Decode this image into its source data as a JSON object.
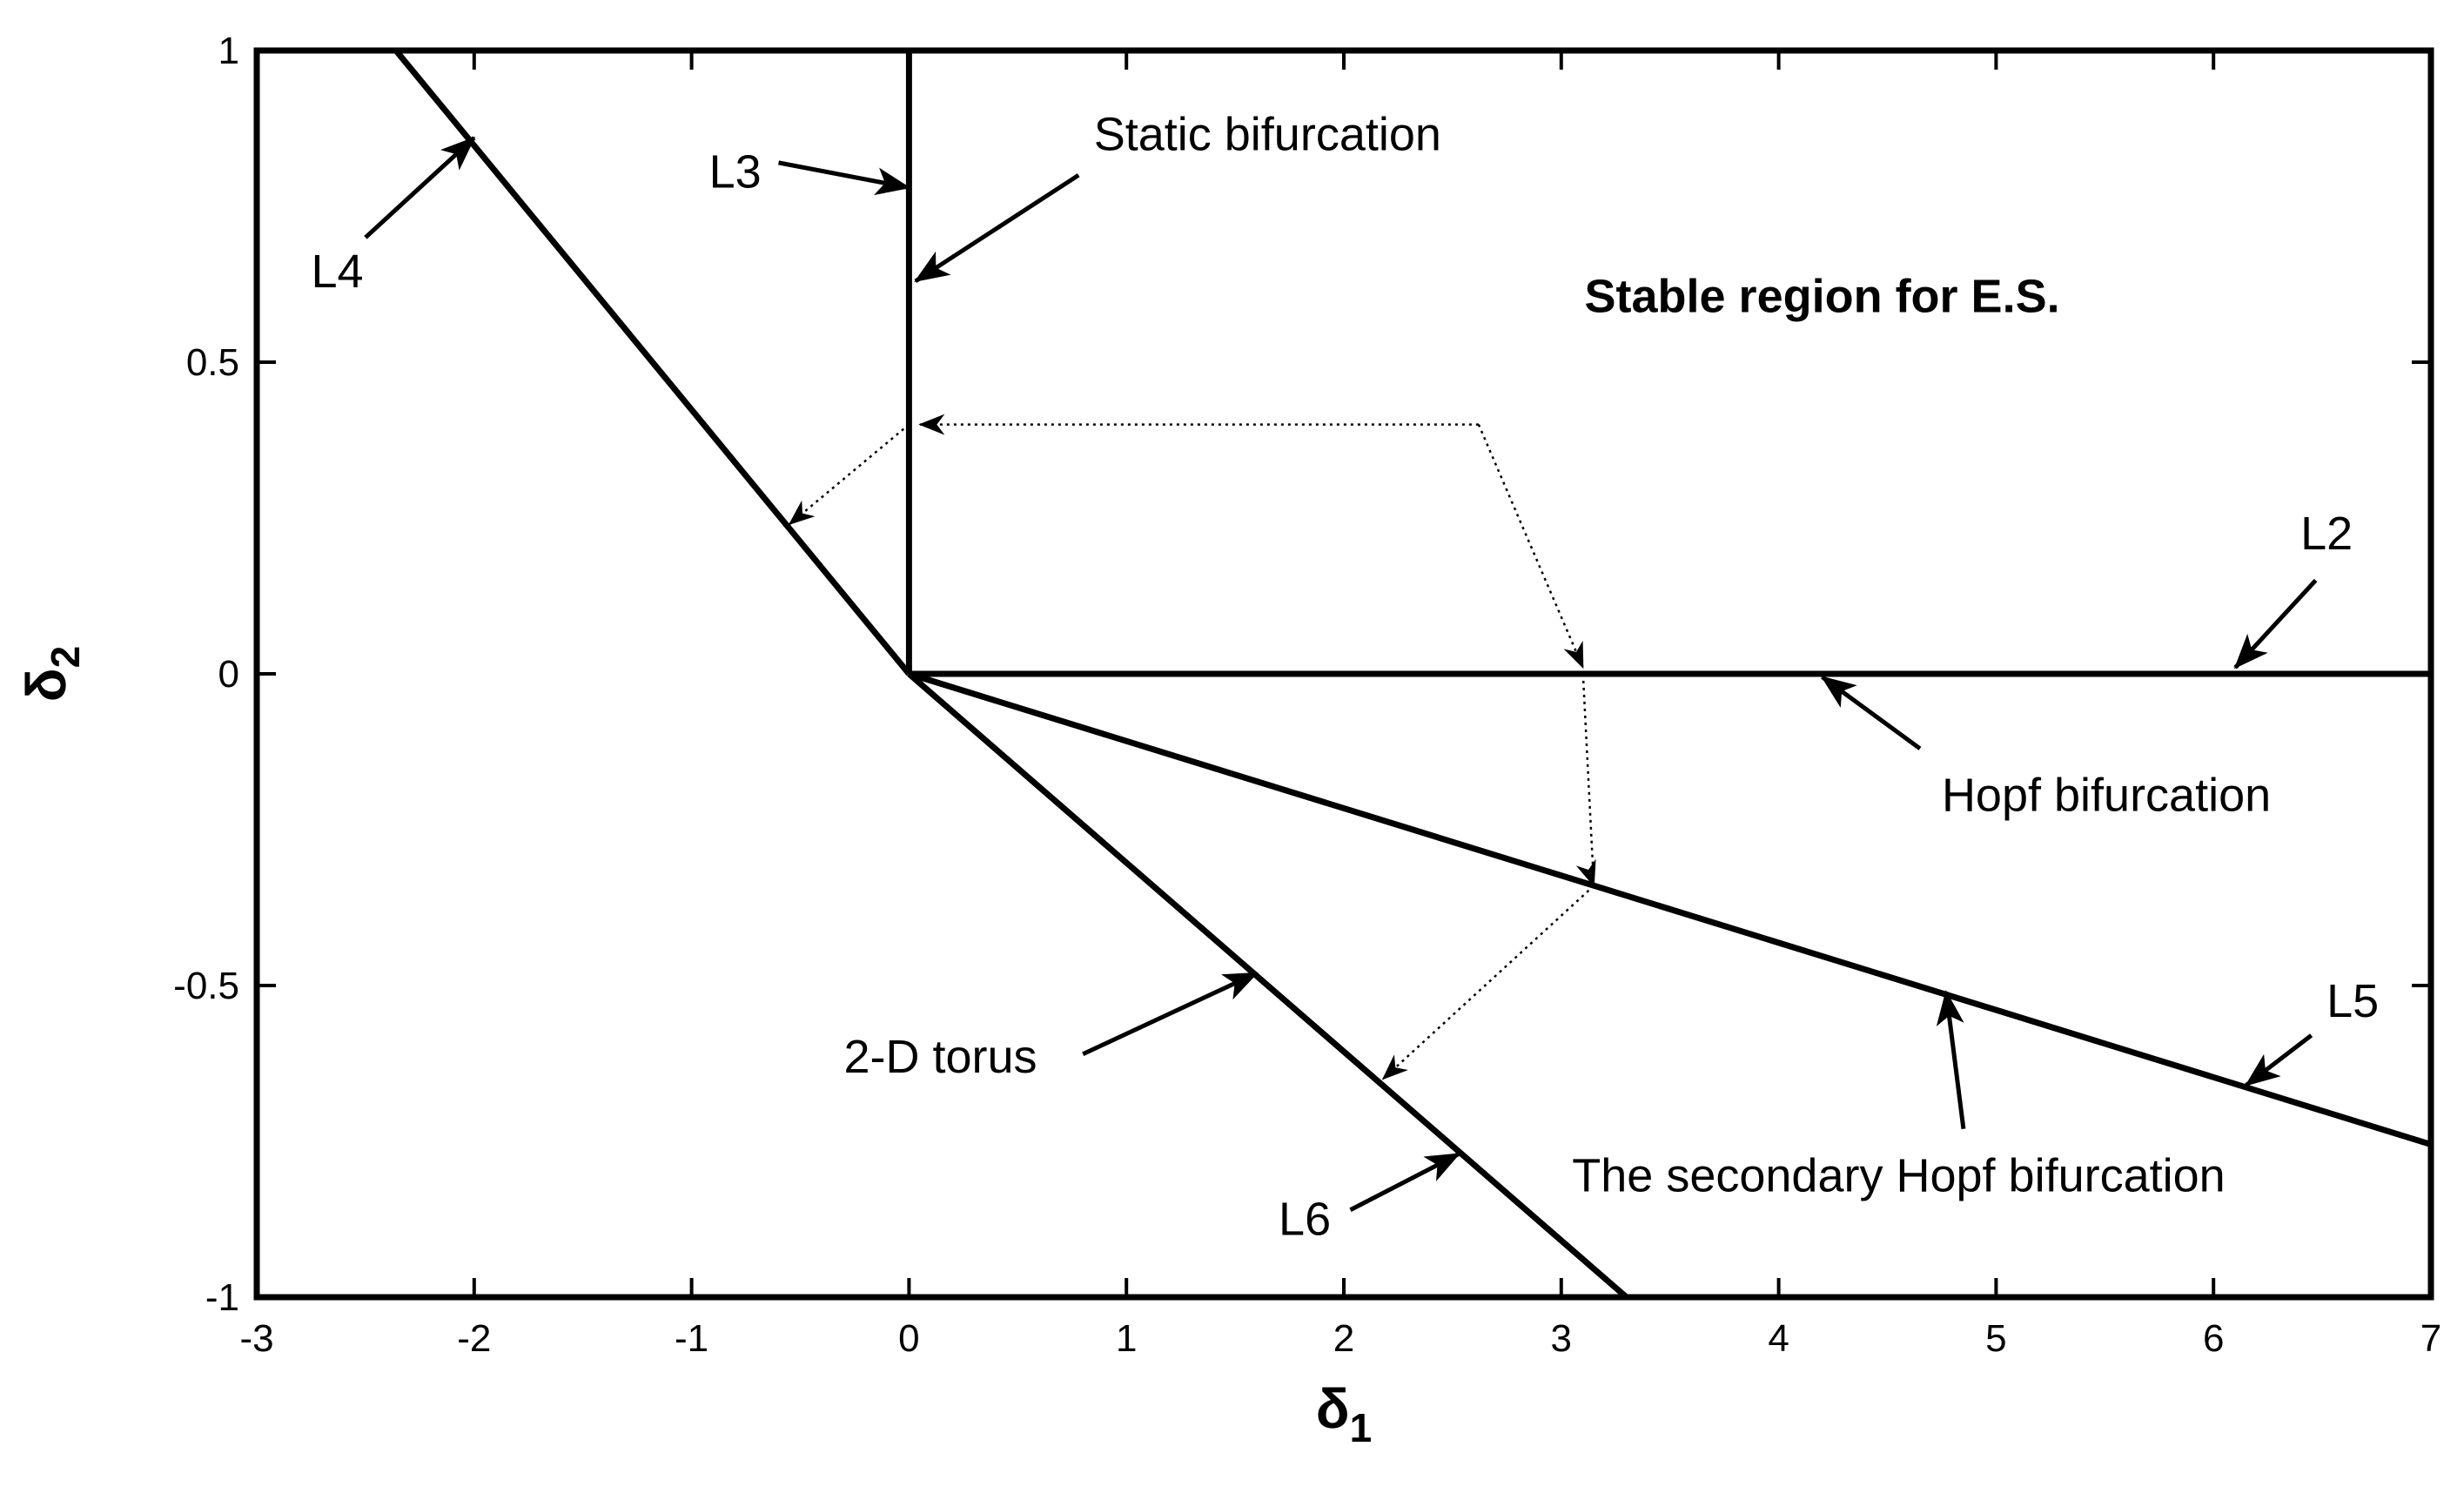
{
  "chart_data": {
    "type": "line",
    "title": "",
    "xlabel": {
      "base": "δ",
      "sub": "1"
    },
    "ylabel": {
      "base": "δ",
      "sub": "2"
    },
    "xlim": [
      -3,
      7
    ],
    "ylim": [
      -1,
      1
    ],
    "xticks": [
      -3,
      -2,
      -1,
      0,
      1,
      2,
      3,
      4,
      5,
      6,
      7
    ],
    "yticks": [
      -1,
      -0.5,
      0,
      0.5,
      1
    ],
    "xtick_labels": [
      "-3",
      "-2",
      "-1",
      "0",
      "1",
      "2",
      "3",
      "4",
      "5",
      "6",
      "7"
    ],
    "ytick_labels": [
      "-1",
      "-0.5",
      "0",
      "0.5",
      "1"
    ],
    "grid": false,
    "series": [
      {
        "name": "L2",
        "points": [
          [
            0,
            0
          ],
          [
            7,
            0
          ]
        ]
      },
      {
        "name": "L3",
        "points": [
          [
            0,
            0
          ],
          [
            0,
            1
          ]
        ]
      },
      {
        "name": "L4",
        "points": [
          [
            0,
            0
          ],
          [
            -2.36,
            1
          ]
        ]
      },
      {
        "name": "L5",
        "points": [
          [
            0,
            0
          ],
          [
            7,
            -0.755
          ]
        ]
      },
      {
        "name": "L6",
        "points": [
          [
            0,
            0
          ],
          [
            3.3,
            -1
          ]
        ]
      }
    ],
    "region_label": {
      "text": "Stable region for E.S.",
      "at": [
        4.2,
        0.58
      ]
    },
    "annotations": [
      {
        "text": "Static bifurcation",
        "at": [
          0.85,
          0.84
        ],
        "anchor": "start",
        "arrow": [
          [
            0.78,
            0.8
          ],
          [
            0.03,
            0.63
          ]
        ]
      },
      {
        "text": "L3",
        "at": [
          -0.92,
          0.78
        ],
        "anchor": "start",
        "arrow": [
          [
            -0.6,
            0.82
          ],
          [
            0,
            0.78
          ]
        ]
      },
      {
        "text": "L4",
        "at": [
          -2.75,
          0.62
        ],
        "anchor": "start",
        "arrow": [
          [
            -2.5,
            0.7
          ],
          [
            -2,
            0.86
          ]
        ]
      },
      {
        "text": "L2",
        "at": [
          6.4,
          0.2
        ],
        "anchor": "start",
        "arrow": [
          [
            6.47,
            0.15
          ],
          [
            6.1,
            0.01
          ]
        ]
      },
      {
        "text": "Hopf bifurcation",
        "at": [
          4.75,
          -0.22
        ],
        "anchor": "start",
        "arrow": [
          [
            4.65,
            -0.12
          ],
          [
            4.2,
            -0.005
          ]
        ]
      },
      {
        "text": "2-D torus",
        "at": [
          -0.3,
          -0.64
        ],
        "anchor": "start",
        "arrow": [
          [
            0.8,
            -0.61
          ],
          [
            1.6,
            -0.48
          ]
        ]
      },
      {
        "text": "L5",
        "at": [
          6.52,
          -0.55
        ],
        "anchor": "start",
        "arrow": [
          [
            6.45,
            -0.58
          ],
          [
            6.15,
            -0.66
          ]
        ]
      },
      {
        "text": "The secondary Hopf bifurcation",
        "at": [
          3.05,
          -0.83
        ],
        "anchor": "start",
        "arrow": [
          [
            4.85,
            -0.73
          ],
          [
            4.77,
            -0.51
          ]
        ]
      },
      {
        "text": "L6",
        "at": [
          1.7,
          -0.9
        ],
        "anchor": "start",
        "arrow": [
          [
            2.03,
            -0.86
          ],
          [
            2.53,
            -0.77
          ]
        ]
      }
    ],
    "dotted_path": [
      [
        2.62,
        0.4
      ],
      [
        0.05,
        0.4
      ]
    ],
    "dotted_segments": [
      [
        [
          0.0,
          0.4
        ],
        [
          -0.55,
          0.24
        ]
      ],
      [
        [
          2.62,
          0.4
        ],
        [
          3.1,
          0.01
        ]
      ],
      [
        [
          3.1,
          0.0
        ],
        [
          3.15,
          -0.34
        ]
      ],
      [
        [
          3.15,
          -0.34
        ],
        [
          2.18,
          -0.65
        ]
      ]
    ],
    "line_color": "#000000"
  }
}
